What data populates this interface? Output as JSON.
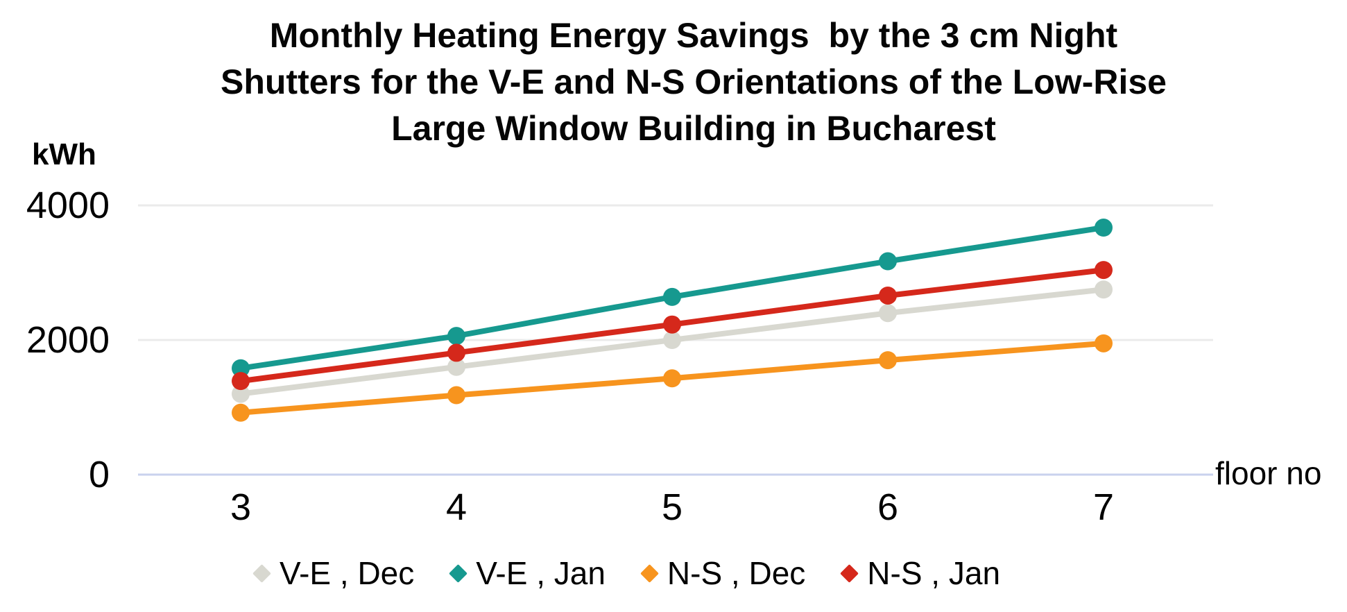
{
  "title": {
    "lines": [
      "Monthly Heating Energy Savings  by the 3 cm Night",
      "Shutters for the V-E and N-S Orientations of the Low-Rise",
      "Large Window Building in Bucharest"
    ]
  },
  "y_axis": {
    "unit_label": "kWh",
    "ticks": [
      "4000",
      "2000",
      "0"
    ]
  },
  "x_axis": {
    "label": "floor no",
    "ticks": [
      "3",
      "4",
      "5",
      "6",
      "7"
    ]
  },
  "legend": {
    "items": [
      {
        "label": "V-E , Dec",
        "color": "#D8D8D0"
      },
      {
        "label": "V-E , Jan",
        "color": "#16998F"
      },
      {
        "label": "N-S , Dec",
        "color": "#F7941E"
      },
      {
        "label": "N-S , Jan",
        "color": "#D5281B"
      }
    ]
  },
  "colors": {
    "gridline": "#EBEBEB",
    "zero_axis_line": "#C9D2EE",
    "error_bar": "#98A0B0",
    "title_text": "#050505"
  },
  "chart_data": {
    "type": "line",
    "title": "Monthly Heating Energy Savings by the 3 cm Night Shutters for the V-E and N-S Orientations of the Low-Rise Large Window Building in Bucharest",
    "xlabel": "floor no",
    "ylabel": "kWh",
    "x": [
      3,
      4,
      5,
      6,
      7
    ],
    "xlim": [
      2.5,
      7.5
    ],
    "ylim": [
      0,
      4000
    ],
    "yticks": [
      0,
      2000,
      4000
    ],
    "grid": true,
    "legend_position": "bottom",
    "marker": "circle",
    "legend_marker": "diamond",
    "error_bar_size_kwh": 70,
    "series": [
      {
        "name": "V-E , Dec",
        "color": "#D8D8D0",
        "values": [
          1200,
          1600,
          2000,
          2400,
          2750
        ]
      },
      {
        "name": "V-E , Jan",
        "color": "#16998F",
        "values": [
          1580,
          2060,
          2640,
          3170,
          3670
        ]
      },
      {
        "name": "N-S , Dec",
        "color": "#F7941E",
        "values": [
          920,
          1180,
          1430,
          1700,
          1950
        ]
      },
      {
        "name": "N-S , Jan",
        "color": "#D5281B",
        "values": [
          1390,
          1810,
          2230,
          2660,
          3040
        ]
      }
    ]
  }
}
